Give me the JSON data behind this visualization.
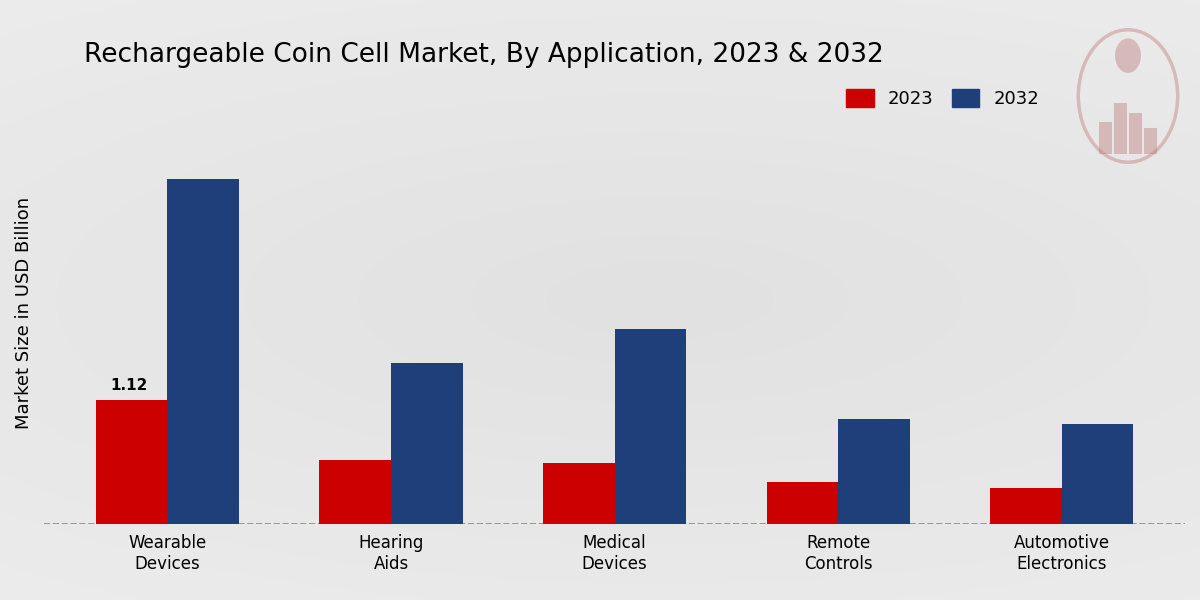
{
  "title": "Rechargeable Coin Cell Market, By Application, 2023 & 2032",
  "ylabel": "Market Size in USD Billion",
  "categories": [
    "Wearable\nDevices",
    "Hearing\nAids",
    "Medical\nDevices",
    "Remote\nControls",
    "Automotive\nElectronics"
  ],
  "values_2023": [
    1.12,
    0.58,
    0.55,
    0.38,
    0.33
  ],
  "values_2032": [
    3.1,
    1.45,
    1.75,
    0.95,
    0.9
  ],
  "color_2023": "#cc0000",
  "color_2032": "#1f3f7a",
  "legend_labels": [
    "2023",
    "2032"
  ],
  "annotation_text": "1.12",
  "annotation_category": 0,
  "bar_width": 0.32,
  "ylim": [
    0,
    3.8
  ],
  "title_fontsize": 19,
  "axis_label_fontsize": 13,
  "tick_fontsize": 12,
  "legend_fontsize": 13
}
